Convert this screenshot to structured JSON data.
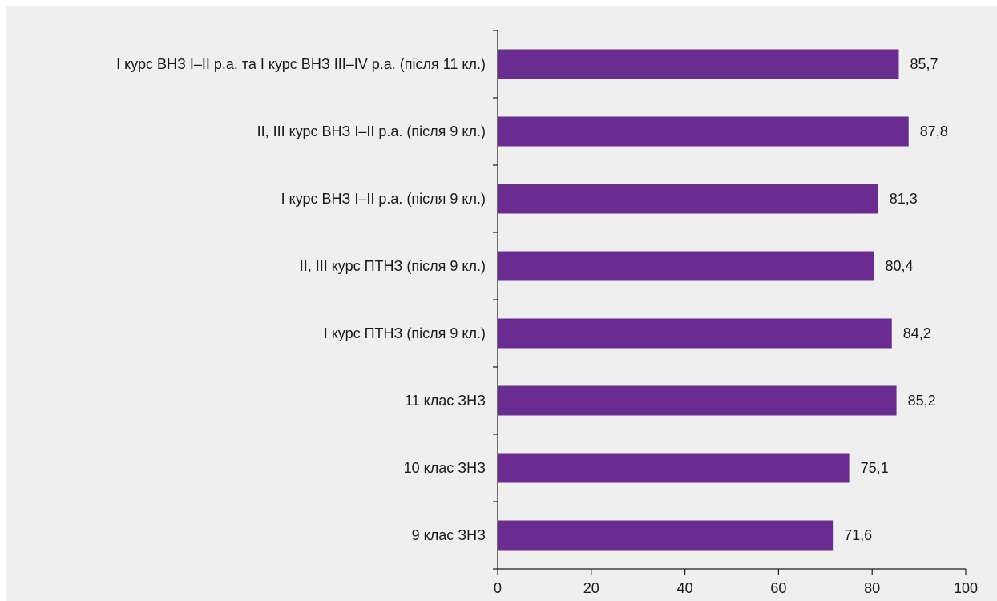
{
  "chart_data": {
    "type": "bar",
    "orientation": "horizontal",
    "title": "",
    "xlabel": "",
    "ylabel": "",
    "xlim": [
      0,
      100
    ],
    "ticks": [
      "0",
      "20",
      "40",
      "60",
      "80",
      "100"
    ],
    "tick_values": [
      0,
      20,
      40,
      60,
      80,
      100
    ],
    "grid": false,
    "bar_color": "#6a2c91",
    "categories": [
      "І курс ВНЗ І–ІІ р.а. та І курс ВНЗ ІІІ–IV р.а. (після 11 кл.)",
      "ІІ, ІІІ курс ВНЗ І–ІІ р.а. (після 9 кл.)",
      "І курс ВНЗ І–ІІ р.а. (після 9 кл.)",
      "ІІ, ІІІ курс ПТНЗ (після 9 кл.)",
      "І курс ПТНЗ (після 9 кл.)",
      "11 клас ЗНЗ",
      "10 клас ЗНЗ",
      "9 клас ЗНЗ"
    ],
    "values": [
      85.7,
      87.8,
      81.3,
      80.4,
      84.2,
      85.2,
      75.1,
      71.6
    ],
    "value_labels": [
      "85,7",
      "87,8",
      "81,3",
      "80,4",
      "84,2",
      "85,2",
      "75,1",
      "71,6"
    ]
  }
}
